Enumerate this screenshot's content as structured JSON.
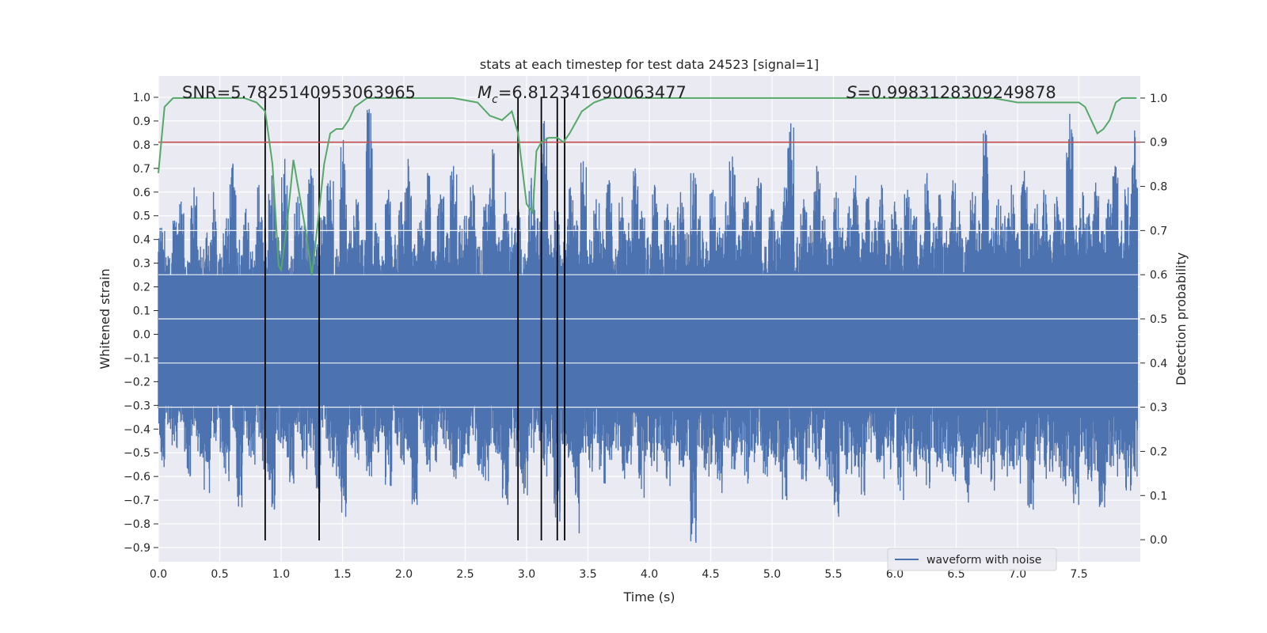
{
  "chart_data": {
    "type": "line",
    "title": "stats at each timestep for test data 24523 [signal=1]",
    "xlabel": "Time (s)",
    "ylabel": "Whitened strain",
    "ylabel_right": "Detection probability",
    "xlim": [
      0.0,
      8.0
    ],
    "ylim": [
      -0.96,
      1.09
    ],
    "ylim_right": [
      -0.05,
      1.05
    ],
    "x_ticks": [
      "0.0",
      "0.5",
      "1.0",
      "1.5",
      "2.0",
      "2.5",
      "3.0",
      "3.5",
      "4.0",
      "4.5",
      "5.0",
      "5.5",
      "6.0",
      "6.5",
      "7.0",
      "7.5"
    ],
    "y_ticks": [
      "1.0",
      "0.9",
      "0.8",
      "0.7",
      "0.6",
      "0.5",
      "0.4",
      "0.3",
      "0.2",
      "0.1",
      "0.0",
      "−0.1",
      "−0.2",
      "−0.3",
      "−0.4",
      "−0.5",
      "−0.6",
      "−0.7",
      "−0.8",
      "−0.9"
    ],
    "y_ticks_right": [
      "1.0",
      "0.9",
      "0.8",
      "0.7",
      "0.6",
      "0.5",
      "0.4",
      "0.3",
      "0.2",
      "0.1",
      "0.0"
    ],
    "annotations": {
      "snr": "SNR=5.7825140953063965",
      "mc_label": "M",
      "mc_sub": "c",
      "mc_value": "=6.812341690063477",
      "s_label": "S",
      "s_value": "=0.9983128309249878"
    },
    "legend": {
      "label": "waveform with noise",
      "placement": "lower-right"
    },
    "threshold_right": 0.9,
    "event_lines_x": [
      0.87,
      1.31,
      2.93,
      3.12,
      3.25,
      3.31
    ],
    "event_lines_yrange": [
      -0.87,
      1.0
    ],
    "series": [
      {
        "name": "waveform with noise",
        "color": "#4c72b0",
        "envelope_pos": [
          0.45,
          0.33,
          0.48,
          0.56,
          0.31,
          0.62,
          0.37,
          0.43,
          0.6,
          0.34,
          0.49,
          0.72,
          0.4,
          0.53,
          0.35,
          0.63,
          0.45,
          0.67,
          0.41,
          0.74,
          0.33,
          0.58,
          0.46,
          0.7,
          0.38,
          0.5,
          0.65,
          0.36,
          0.82,
          0.44,
          0.57,
          0.4,
          0.95,
          0.47,
          0.33,
          0.61,
          0.42,
          0.56,
          0.74,
          0.38,
          0.48,
          0.68,
          0.35,
          0.59,
          0.43,
          0.71,
          0.46,
          0.5,
          0.63,
          0.37,
          0.55,
          0.78,
          0.41,
          0.6,
          0.45,
          0.53,
          0.34,
          0.66,
          0.49,
          0.9,
          0.42,
          0.56,
          0.39,
          0.62,
          0.48,
          0.73,
          0.4,
          0.57,
          0.44,
          0.65,
          0.36,
          0.58,
          0.47,
          0.7,
          0.52,
          0.41,
          0.63,
          0.38,
          0.55,
          0.46,
          0.6,
          0.43,
          0.68,
          0.5,
          0.39,
          0.61,
          0.45,
          0.56,
          0.75,
          0.42,
          0.58,
          0.48,
          0.66,
          0.37,
          0.53,
          0.44,
          0.62,
          0.89,
          0.41,
          0.57,
          0.46,
          0.71,
          0.5,
          0.39,
          0.6,
          0.45,
          0.54,
          0.67,
          0.43,
          0.58,
          0.48,
          0.63,
          0.4,
          0.56,
          0.45,
          0.61,
          0.5,
          0.42,
          0.68,
          0.47,
          0.59,
          0.44,
          0.65,
          0.52,
          0.41,
          0.6,
          0.48,
          0.86,
          0.45,
          0.57,
          0.5,
          0.63,
          0.43,
          0.69,
          0.47,
          0.55,
          0.61,
          0.42,
          0.58,
          0.49,
          0.93,
          0.46,
          0.6,
          0.51,
          0.64,
          0.44,
          0.57,
          0.71,
          0.48,
          0.62,
          0.86
        ],
        "envelope_neg": [
          -0.56,
          -0.4,
          -0.48,
          -0.37,
          -0.6,
          -0.43,
          -0.52,
          -0.67,
          -0.45,
          -0.5,
          -0.62,
          -0.41,
          -0.73,
          -0.47,
          -0.55,
          -0.44,
          -0.58,
          -0.74,
          -0.46,
          -0.52,
          -0.63,
          -0.42,
          -0.57,
          -0.49,
          -0.71,
          -0.44,
          -0.56,
          -0.61,
          -0.77,
          -0.48,
          -0.53,
          -0.45,
          -0.6,
          -0.5,
          -0.43,
          -0.64,
          -0.47,
          -0.55,
          -0.52,
          -0.72,
          -0.46,
          -0.58,
          -0.54,
          -0.44,
          -0.49,
          -0.61,
          -0.56,
          -0.51,
          -0.45,
          -0.59,
          -0.62,
          -0.47,
          -0.53,
          -0.72,
          -0.48,
          -0.57,
          -0.68,
          -0.5,
          -0.45,
          -0.6,
          -0.52,
          -0.79,
          -0.47,
          -0.54,
          -0.84,
          -0.5,
          -0.58,
          -0.46,
          -0.63,
          -0.53,
          -0.49,
          -0.61,
          -0.55,
          -0.47,
          -0.69,
          -0.52,
          -0.58,
          -0.5,
          -0.64,
          -0.47,
          -0.56,
          -0.53,
          -0.88,
          -0.49,
          -0.6,
          -0.55,
          -0.67,
          -0.48,
          -0.57,
          -0.51,
          -0.63,
          -0.54,
          -0.47,
          -0.6,
          -0.52,
          -0.58,
          -0.7,
          -0.49,
          -0.55,
          -0.62,
          -0.5,
          -0.57,
          -0.53,
          -0.64,
          -0.77,
          -0.51,
          -0.59,
          -0.56,
          -0.68,
          -0.5,
          -0.54,
          -0.61,
          -0.57,
          -0.52,
          -0.7,
          -0.55,
          -0.6,
          -0.53,
          -0.65,
          -0.5,
          -0.58,
          -0.56,
          -0.62,
          -0.52,
          -0.71,
          -0.55,
          -0.59,
          -0.54,
          -0.66,
          -0.51,
          -0.6,
          -0.57,
          -0.63,
          -0.53,
          -0.74,
          -0.55,
          -0.61,
          -0.58,
          -0.56,
          -0.64,
          -0.6,
          -0.72,
          -0.55,
          -0.62,
          -0.58,
          -0.73,
          -0.56,
          -0.6,
          -0.53,
          -0.66,
          -0.6,
          -0.73,
          -0.52
        ]
      },
      {
        "name": "Detection probability",
        "color": "#55a868",
        "axis": "right",
        "x": [
          0.0,
          0.05,
          0.12,
          0.2,
          0.3,
          0.4,
          0.5,
          0.6,
          0.7,
          0.8,
          0.87,
          0.93,
          0.98,
          1.0,
          1.05,
          1.1,
          1.2,
          1.25,
          1.3,
          1.35,
          1.4,
          1.45,
          1.5,
          1.55,
          1.6,
          1.7,
          1.8,
          1.9,
          2.0,
          2.2,
          2.4,
          2.6,
          2.7,
          2.8,
          2.88,
          2.93,
          3.0,
          3.05,
          3.08,
          3.12,
          3.18,
          3.25,
          3.3,
          3.35,
          3.45,
          3.55,
          3.65,
          3.8,
          4.0,
          4.5,
          5.0,
          5.5,
          6.0,
          6.5,
          6.8,
          7.0,
          7.2,
          7.35,
          7.45,
          7.5,
          7.55,
          7.6,
          7.65,
          7.7,
          7.75,
          7.8,
          7.85,
          7.9,
          7.97
        ],
        "y": [
          0.83,
          0.98,
          1.0,
          1.0,
          1.0,
          1.0,
          1.0,
          1.0,
          1.0,
          0.99,
          0.97,
          0.85,
          0.62,
          0.61,
          0.72,
          0.86,
          0.7,
          0.6,
          0.72,
          0.85,
          0.92,
          0.93,
          0.93,
          0.95,
          0.98,
          1.0,
          1.0,
          1.0,
          1.0,
          1.0,
          1.0,
          0.99,
          0.96,
          0.95,
          0.97,
          0.92,
          0.76,
          0.74,
          0.88,
          0.9,
          0.91,
          0.91,
          0.9,
          0.92,
          0.97,
          0.99,
          1.0,
          1.0,
          1.0,
          1.0,
          1.0,
          1.0,
          1.0,
          1.0,
          1.0,
          0.99,
          0.99,
          0.99,
          0.99,
          0.99,
          0.98,
          0.95,
          0.92,
          0.93,
          0.95,
          0.99,
          1.0,
          1.0,
          1.0
        ]
      }
    ],
    "grid": true,
    "colors": {
      "background": "#eaeaf2",
      "grid": "#ffffff",
      "threshold": "#c44e52",
      "event_line": "#000000"
    }
  }
}
